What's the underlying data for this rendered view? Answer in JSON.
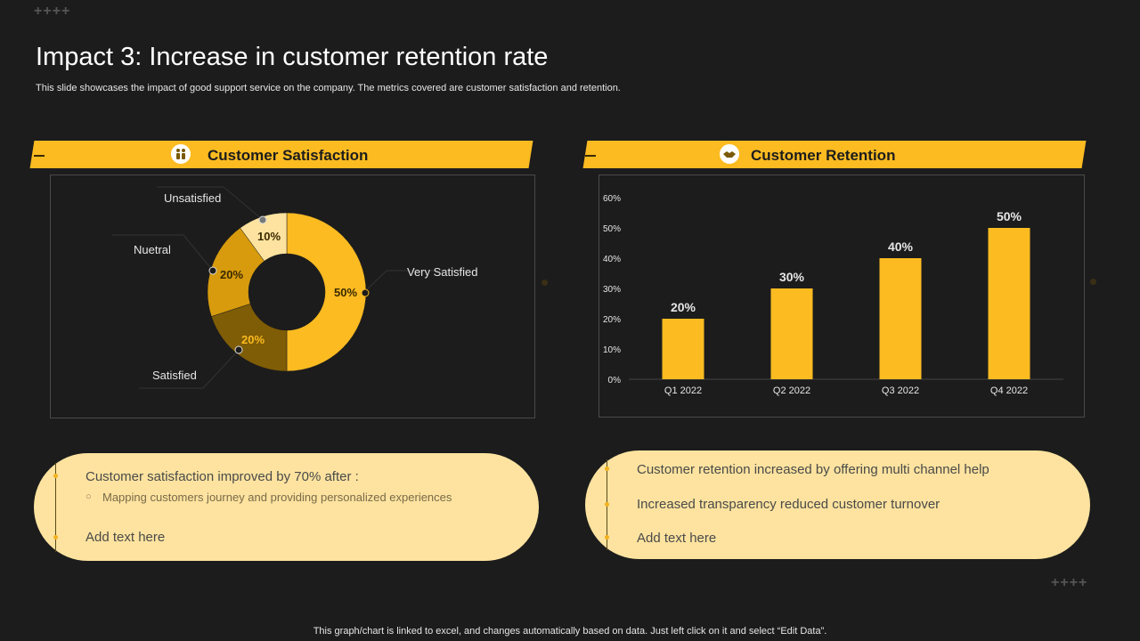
{
  "title": "Impact 3: Increase in customer retention rate",
  "subtitle": "This slide showcases the impact of good support service on the company. The metrics covered are customer satisfaction and retention.",
  "decor_glyph": "++++",
  "satisfaction": {
    "banner_label": "Customer Satisfaction",
    "icon": "people-icon"
  },
  "retention": {
    "banner_label": "Customer Retention",
    "icon": "handshake-icon"
  },
  "chart_data": [
    {
      "type": "pie",
      "variant": "donut",
      "title": "Customer Satisfaction",
      "slices": [
        {
          "label": "Very Satisfied",
          "value": 50,
          "value_label": "50%",
          "color": "#fbbb21"
        },
        {
          "label": "Satisfied",
          "value": 20,
          "value_label": "20%",
          "color": "#7f5c06"
        },
        {
          "label": "Nuetral",
          "value": 20,
          "value_label": "20%",
          "color": "#d79b0d"
        },
        {
          "label": "Unsatisfied",
          "value": 10,
          "value_label": "10%",
          "color": "#fde39f"
        }
      ]
    },
    {
      "type": "bar",
      "title": "Customer Retention",
      "categories": [
        "Q1 2022",
        "Q2 2022",
        "Q3 2022",
        "Q4 2022"
      ],
      "values": [
        20,
        30,
        40,
        50
      ],
      "value_labels": [
        "20%",
        "30%",
        "40%",
        "50%"
      ],
      "ylim": [
        0,
        60
      ],
      "yticks": [
        "0%",
        "10%",
        "20%",
        "30%",
        "40%",
        "50%",
        "60%"
      ],
      "bar_color": "#fbbb21"
    }
  ],
  "left_panel": {
    "line1": "Customer satisfaction improved by 70% after :",
    "bullet_glyph": "○",
    "sub_bullet": "Mapping customers journey  and providing  personalized  experiences",
    "line3": "Add text here"
  },
  "right_panel": {
    "line1": "Customer retention increased by offering multi channel help",
    "line2": "Increased transparency reduced customer turnover",
    "line3": "Add text here"
  },
  "footer": "This graph/chart is linked to excel,  and changes automatically based on data. Just left click on it and select “Edit Data”."
}
